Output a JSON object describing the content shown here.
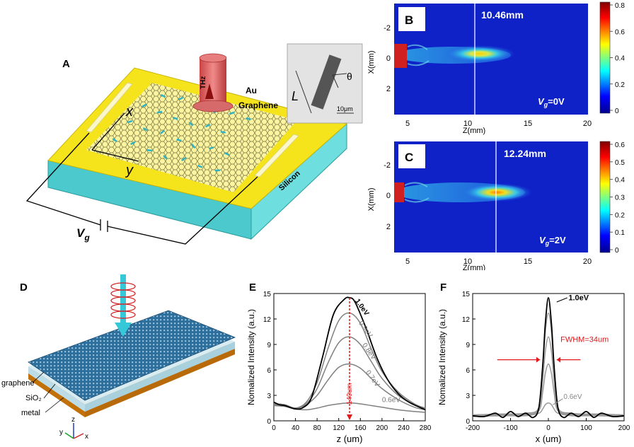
{
  "panels": {
    "a": {
      "label": "A",
      "source_label": "THz",
      "au_label": "Au",
      "graphene_label": "Graphene",
      "silicon_label": "Silicon",
      "x_axis": "x",
      "y_axis": "y",
      "voltage_symbol": "V",
      "voltage_sub": "g",
      "inset": {
        "length_label": "L",
        "angle_label": "θ",
        "scale_label": "10μm"
      }
    },
    "b": {
      "label": "B",
      "focus_label": "10.46mm",
      "focus_z": 10.46,
      "gate_symbol": "V",
      "gate_sub": "g",
      "gate_value": "=0V",
      "colorbar_ticks": [
        "0.8",
        "0.6",
        "0.4",
        "0.2",
        "0"
      ],
      "colorbar_max": 0.85
    },
    "c": {
      "label": "C",
      "focus_label": "12.24mm",
      "focus_z": 12.24,
      "gate_symbol": "V",
      "gate_sub": "g",
      "gate_value": "=2V",
      "colorbar_ticks": [
        "0.6",
        "0.5",
        "0.4",
        "0.3",
        "0.2",
        "0.1",
        "0"
      ],
      "colorbar_max": 0.6
    },
    "heatmap_axes": {
      "xlabel": "Z(mm)",
      "ylabel": "X(mm)",
      "xticks": [
        "5",
        "10",
        "15",
        "20"
      ],
      "yticks": [
        "-2",
        "0",
        "2"
      ]
    },
    "d": {
      "label": "D",
      "layers": [
        "graphene",
        "SiO₂",
        "metal"
      ],
      "axes": {
        "z": "z",
        "y": "y",
        "x": "x"
      }
    },
    "e": {
      "label": "E"
    },
    "f": {
      "label": "F"
    }
  },
  "colors": {
    "gold": "#f5e41c",
    "silicon": "#5ed6d6",
    "graphene_sheet": "#2d6f9e",
    "focus_red": "#e0191b"
  },
  "chart_data": [
    {
      "id": "E",
      "type": "line",
      "xlabel": "z (um)",
      "ylabel": "Nomalized Intensity (a.u.)",
      "xlim": [
        0,
        280
      ],
      "ylim": [
        0,
        15
      ],
      "xticks": [
        "0",
        "40",
        "80",
        "120",
        "160",
        "200",
        "240",
        "280"
      ],
      "yticks": [
        "0",
        "3",
        "6",
        "9",
        "12",
        "15"
      ],
      "annotation": "140um",
      "focus_x": 140,
      "series": [
        {
          "name": "1.0eV",
          "color": "#000000",
          "x": [
            0,
            10,
            20,
            40,
            55,
            70,
            90,
            110,
            130,
            140,
            150,
            170,
            190,
            210,
            230,
            250,
            280
          ],
          "y": [
            2.2,
            1.9,
            1.8,
            1.4,
            1.6,
            2.8,
            7.5,
            12.5,
            14.3,
            14.5,
            14.0,
            11.0,
            7.5,
            4.9,
            3.2,
            2.2,
            1.3
          ]
        },
        {
          "name": "0.9eV",
          "color": "#808080",
          "x": [
            0,
            20,
            40,
            60,
            80,
            100,
            120,
            140,
            160,
            180,
            200,
            230,
            260,
            280
          ],
          "y": [
            2.0,
            1.9,
            1.5,
            2.2,
            4.5,
            8.5,
            11.8,
            12.7,
            11.5,
            8.5,
            5.8,
            3.4,
            2.0,
            1.5
          ]
        },
        {
          "name": "0.8eV",
          "color": "#808080",
          "x": [
            0,
            20,
            40,
            60,
            80,
            100,
            120,
            140,
            160,
            180,
            200,
            230,
            260,
            280
          ],
          "y": [
            2.0,
            1.9,
            1.5,
            2.0,
            3.8,
            6.8,
            9.2,
            9.9,
            9.0,
            7.0,
            5.0,
            3.0,
            1.9,
            1.4
          ]
        },
        {
          "name": "0.7eV",
          "color": "#808080",
          "x": [
            0,
            20,
            40,
            60,
            80,
            100,
            120,
            140,
            160,
            180,
            200,
            230,
            260,
            280
          ],
          "y": [
            1.9,
            1.8,
            1.5,
            1.9,
            3.0,
            4.8,
            6.3,
            6.7,
            6.2,
            5.0,
            3.8,
            2.5,
            1.6,
            1.3
          ]
        },
        {
          "name": "0.6eV",
          "color": "#808080",
          "x": [
            0,
            20,
            40,
            60,
            80,
            100,
            120,
            140,
            160,
            180,
            200,
            230,
            260,
            280
          ],
          "y": [
            1.8,
            1.7,
            1.4,
            1.3,
            1.5,
            1.8,
            2.0,
            2.1,
            2.0,
            1.8,
            1.6,
            1.3,
            1.1,
            1.0
          ]
        }
      ]
    },
    {
      "id": "F",
      "type": "line",
      "xlabel": "x (um)",
      "ylabel": "Nomalized Intensity (a.u.)",
      "xlim": [
        -200,
        200
      ],
      "ylim": [
        0,
        15
      ],
      "xticks": [
        "-200",
        "-100",
        "0",
        "100",
        "200"
      ],
      "yticks": [
        "0",
        "3",
        "6",
        "9",
        "12",
        "15"
      ],
      "annotation": "FWHM=34um",
      "series": [
        {
          "name": "1.0eV",
          "color": "#000000",
          "x": [
            -200,
            -170,
            -140,
            -120,
            -100,
            -80,
            -60,
            -40,
            -25,
            -15,
            -8,
            0,
            8,
            15,
            25,
            40,
            60,
            80,
            100,
            120,
            140,
            170,
            200
          ],
          "y": [
            0.6,
            0.5,
            0.9,
            0.4,
            1.1,
            0.5,
            0.9,
            0.4,
            1.6,
            6.5,
            11.5,
            14.5,
            11.5,
            6.5,
            1.6,
            0.4,
            0.9,
            0.5,
            1.1,
            0.4,
            0.9,
            0.5,
            0.6
          ]
        },
        {
          "name": "0.9eV",
          "color": "#999999",
          "x": [
            -200,
            -120,
            -60,
            -25,
            -15,
            -8,
            0,
            8,
            15,
            25,
            60,
            120,
            200
          ],
          "y": [
            0.7,
            0.8,
            0.9,
            1.6,
            6.0,
            10.5,
            12.7,
            10.5,
            6.0,
            1.6,
            0.9,
            0.8,
            0.7
          ]
        },
        {
          "name": "0.8eV",
          "color": "#999999",
          "x": [
            -200,
            -120,
            -60,
            -25,
            -15,
            -8,
            0,
            8,
            15,
            25,
            60,
            120,
            200
          ],
          "y": [
            0.7,
            0.8,
            0.8,
            1.4,
            4.8,
            8.2,
            9.9,
            8.2,
            4.8,
            1.4,
            0.8,
            0.8,
            0.7
          ]
        },
        {
          "name": "0.7eV",
          "color": "#999999",
          "x": [
            -200,
            -120,
            -60,
            -25,
            -15,
            -8,
            0,
            8,
            15,
            25,
            60,
            120,
            200
          ],
          "y": [
            0.6,
            0.7,
            0.7,
            1.2,
            3.4,
            5.6,
            6.7,
            5.6,
            3.4,
            1.2,
            0.7,
            0.7,
            0.6
          ]
        },
        {
          "name": "0.6eV",
          "color": "#999999",
          "x": [
            -200,
            -120,
            -60,
            -25,
            -15,
            -8,
            0,
            8,
            15,
            25,
            60,
            120,
            200
          ],
          "y": [
            0.5,
            0.6,
            0.6,
            0.9,
            1.4,
            1.9,
            2.1,
            1.9,
            1.4,
            0.9,
            0.6,
            0.6,
            0.5
          ]
        }
      ]
    }
  ]
}
